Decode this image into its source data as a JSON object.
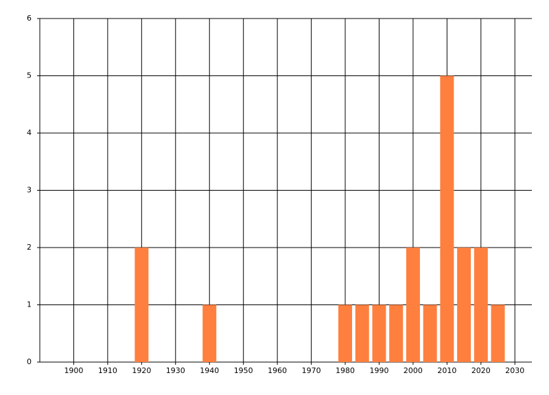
{
  "chart_data": {
    "type": "bar",
    "x": [
      1920,
      1940,
      1980,
      1985,
      1990,
      1995,
      2000,
      2005,
      2010,
      2015,
      2020,
      2025
    ],
    "values": [
      2,
      1,
      1,
      1,
      1,
      1,
      2,
      1,
      5,
      2,
      2,
      1
    ],
    "color": "#ff7f3f",
    "xlim": [
      1890,
      2035
    ],
    "xticks": [
      1900,
      1910,
      1920,
      1930,
      1940,
      1950,
      1960,
      1970,
      1980,
      1990,
      2000,
      2010,
      2020,
      2030
    ],
    "ylim": [
      0,
      6
    ],
    "yticks": [
      0,
      1,
      2,
      3,
      4,
      5,
      6
    ],
    "grid": true
  }
}
